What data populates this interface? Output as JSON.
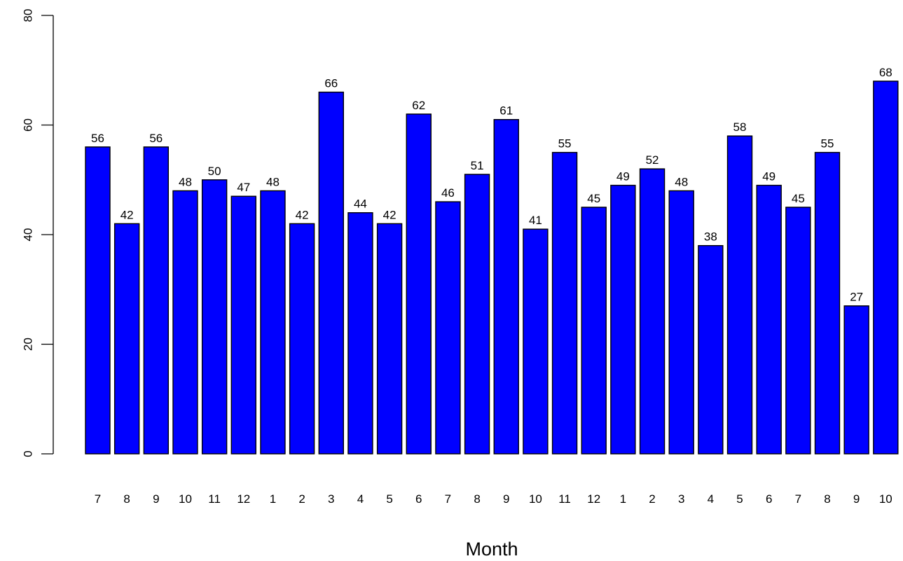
{
  "chart_data": {
    "type": "bar",
    "categories": [
      "7",
      "8",
      "9",
      "10",
      "11",
      "12",
      "1",
      "2",
      "3",
      "4",
      "5",
      "6",
      "7",
      "8",
      "9",
      "10",
      "11",
      "12",
      "1",
      "2",
      "3",
      "4",
      "5",
      "6",
      "7",
      "8",
      "9",
      "10"
    ],
    "values": [
      56,
      42,
      56,
      48,
      50,
      47,
      48,
      42,
      66,
      44,
      42,
      62,
      46,
      51,
      61,
      41,
      55,
      45,
      49,
      52,
      48,
      38,
      58,
      49,
      45,
      55,
      27,
      68
    ],
    "data_labels": [
      "56",
      "42",
      "56",
      "48",
      "50",
      "47",
      "48",
      "42",
      "66",
      "44",
      "42",
      "62",
      "46",
      "51",
      "61",
      "41",
      "55",
      "45",
      "49",
      "52",
      "48",
      "38",
      "58",
      "49",
      "45",
      "55",
      "27",
      "68"
    ],
    "title": "",
    "xlabel": "Month",
    "ylabel": "",
    "ylim": [
      0,
      80
    ],
    "yticks": [
      0,
      20,
      40,
      60,
      80
    ],
    "ytick_labels": [
      "0",
      "20",
      "40",
      "60",
      "80"
    ],
    "grid": false,
    "legend": "none",
    "bar_color": "#0000FF",
    "bar_border_color": "#000000"
  }
}
